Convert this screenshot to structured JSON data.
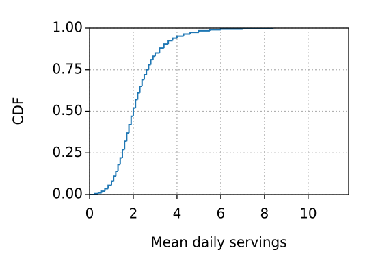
{
  "chart_data": {
    "type": "step",
    "xlabel": "Mean daily servings",
    "ylabel": "CDF",
    "x": [
      0,
      0.25,
      0.4,
      0.55,
      0.7,
      0.85,
      1.0,
      1.1,
      1.2,
      1.3,
      1.4,
      1.5,
      1.6,
      1.7,
      1.8,
      1.9,
      2.0,
      2.1,
      2.2,
      2.3,
      2.4,
      2.5,
      2.6,
      2.7,
      2.8,
      2.9,
      3.0,
      3.2,
      3.4,
      3.6,
      3.8,
      4.0,
      4.3,
      4.6,
      5.0,
      5.5,
      6.0,
      7.0,
      8.4
    ],
    "series": [
      {
        "name": "CDF",
        "color": "#1f77b4",
        "values": [
          0,
          0.005,
          0.01,
          0.02,
          0.035,
          0.055,
          0.08,
          0.11,
          0.14,
          0.18,
          0.22,
          0.27,
          0.32,
          0.37,
          0.42,
          0.47,
          0.52,
          0.57,
          0.61,
          0.65,
          0.69,
          0.72,
          0.75,
          0.78,
          0.81,
          0.83,
          0.85,
          0.88,
          0.905,
          0.925,
          0.94,
          0.952,
          0.965,
          0.975,
          0.984,
          0.99,
          0.994,
          0.997,
          1.0
        ]
      }
    ],
    "xlim": [
      0,
      11.85
    ],
    "xticks": [
      0,
      2,
      4,
      6,
      8,
      10
    ],
    "ylim": [
      0,
      1
    ],
    "yticks": [
      {
        "value": 0,
        "label": "0.00"
      },
      {
        "value": 0.25,
        "label": "0.25"
      },
      {
        "value": 0.5,
        "label": "0.50"
      },
      {
        "value": 0.75,
        "label": "0.75"
      },
      {
        "value": 1,
        "label": "1.00"
      }
    ],
    "grid": true
  }
}
